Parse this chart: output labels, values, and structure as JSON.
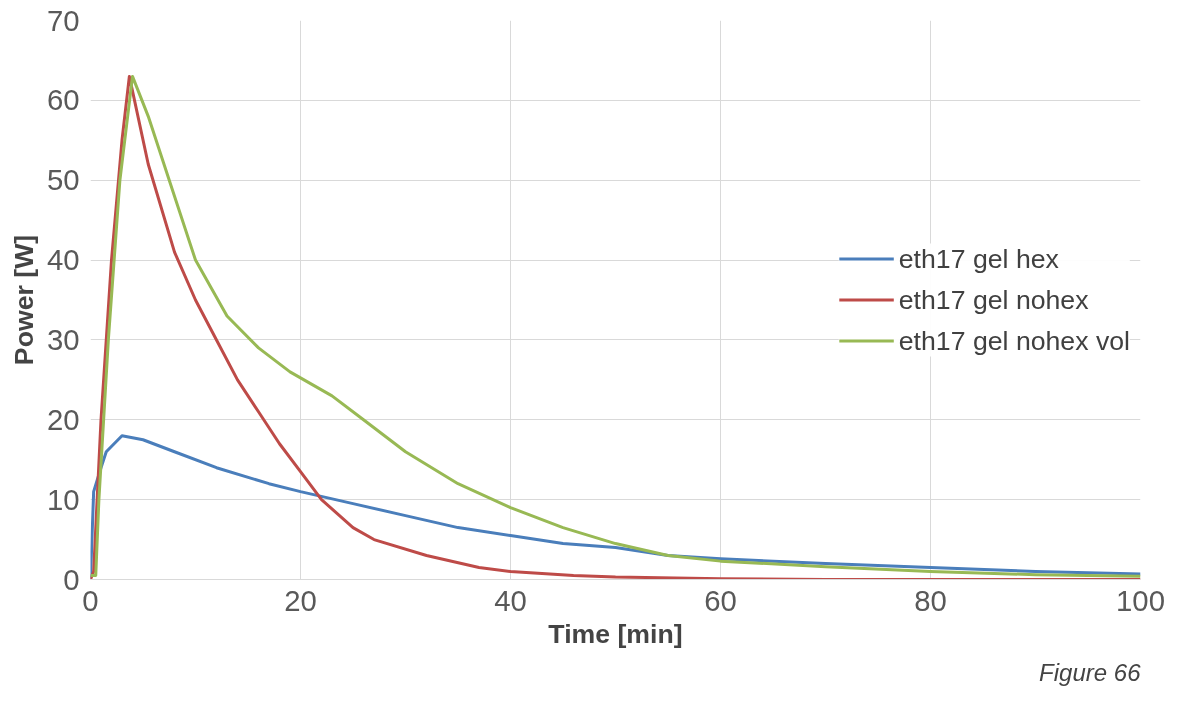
{
  "chart_data": {
    "type": "line",
    "xlabel": "Time [min]",
    "ylabel": "Power [W]",
    "xlim": [
      0,
      100
    ],
    "xticks": [
      0,
      20,
      40,
      60,
      80,
      100
    ],
    "ylim": [
      0,
      70
    ],
    "yticks": [
      0,
      10,
      20,
      30,
      40,
      50,
      60,
      70
    ],
    "grid": true,
    "legend": "right",
    "marker": "none",
    "line_style": "solid",
    "annotations": [
      "Figure 66"
    ],
    "series": [
      {
        "name": "eth17 gel hex",
        "color": "#4a7ebb",
        "x": [
          0,
          0.3,
          1,
          1.5,
          3,
          5,
          8,
          12,
          17,
          20,
          25,
          30,
          35,
          40,
          45,
          50,
          55,
          60,
          70,
          80,
          90,
          100
        ],
        "values": [
          0,
          11,
          14,
          16,
          18,
          17.5,
          16,
          14,
          12,
          11,
          9.5,
          8,
          6.5,
          5.5,
          4.5,
          4,
          3,
          2.6,
          2,
          1.5,
          1,
          0.7
        ]
      },
      {
        "name": "eth17 gel nohex",
        "color": "#be4b48",
        "x": [
          0,
          0.3,
          1,
          2,
          3,
          3.7,
          5.5,
          8,
          10,
          12,
          14,
          16,
          18,
          20,
          22,
          25,
          27,
          32,
          37,
          40,
          46,
          50,
          60,
          70,
          80,
          90,
          100
        ],
        "values": [
          0,
          1,
          20,
          40,
          55,
          63,
          52,
          41,
          35,
          30,
          25,
          21,
          17,
          13.5,
          10,
          6.5,
          5,
          3,
          1.5,
          1,
          0.5,
          0.3,
          0.1,
          0,
          0,
          0,
          0
        ]
      },
      {
        "name": "eth17 gel nohex vol",
        "color": "#98b954",
        "x": [
          0,
          0.5,
          0.8,
          1.7,
          2.8,
          4,
          5.5,
          7.5,
          10,
          13,
          16,
          19,
          23,
          26,
          30,
          35,
          40,
          45,
          50,
          55,
          60,
          70,
          80,
          90,
          100
        ],
        "values": [
          0.5,
          0.5,
          10,
          30,
          50,
          63,
          58,
          50,
          40,
          33,
          29,
          26,
          23,
          20,
          16,
          12,
          9,
          6.5,
          4.5,
          3,
          2.3,
          1.6,
          1,
          0.6,
          0.4
        ]
      }
    ]
  }
}
